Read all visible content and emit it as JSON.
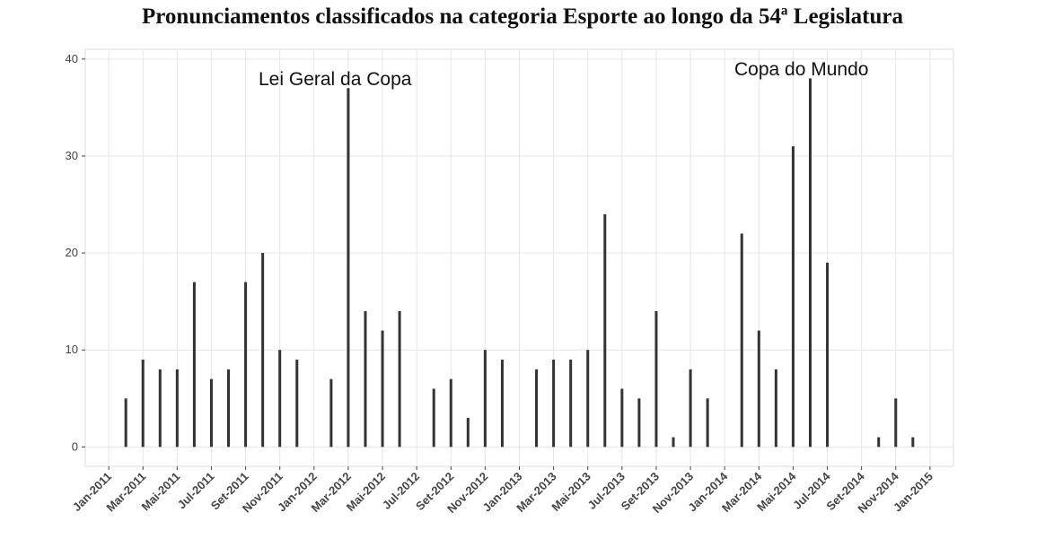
{
  "chart_data": {
    "type": "bar",
    "title": "Pronunciamentos classificados na categoria Esporte ao longo da 54ª Legislatura",
    "annotations": [
      "Lei Geral da Copa",
      "Copa do Mundo"
    ],
    "categories": [
      "Jan-2011",
      null,
      "Mar-2011",
      null,
      "Mai-2011",
      null,
      "Jul-2011",
      null,
      "Set-2011",
      null,
      "Nov-2011",
      null,
      "Jan-2012",
      null,
      "Mar-2012",
      null,
      "Mai-2012",
      null,
      "Jul-2012",
      null,
      "Set-2012",
      null,
      "Nov-2012",
      null,
      "Jan-2013",
      null,
      "Mar-2013",
      null,
      "Mai-2013",
      null,
      "Jul-2013",
      null,
      "Set-2013",
      null,
      "Nov-2013",
      null,
      "Jan-2014",
      null,
      "Mar-2014",
      null,
      "Mai-2014",
      null,
      "Jul-2014",
      null,
      "Set-2014",
      null,
      "Nov-2014",
      null,
      "Jan-2015"
    ],
    "values": [
      null,
      5,
      9,
      8,
      8,
      17,
      7,
      8,
      17,
      20,
      10,
      9,
      null,
      7,
      37,
      14,
      12,
      14,
      null,
      6,
      7,
      3,
      10,
      9,
      null,
      8,
      9,
      9,
      10,
      24,
      6,
      5,
      14,
      1,
      8,
      5,
      null,
      22,
      12,
      8,
      31,
      38,
      19,
      null,
      null,
      1,
      5,
      1,
      null
    ],
    "color": "#333333",
    "ylim": [
      -2,
      41
    ],
    "yticks": [
      0,
      10,
      20,
      30,
      40
    ],
    "grid": true
  }
}
